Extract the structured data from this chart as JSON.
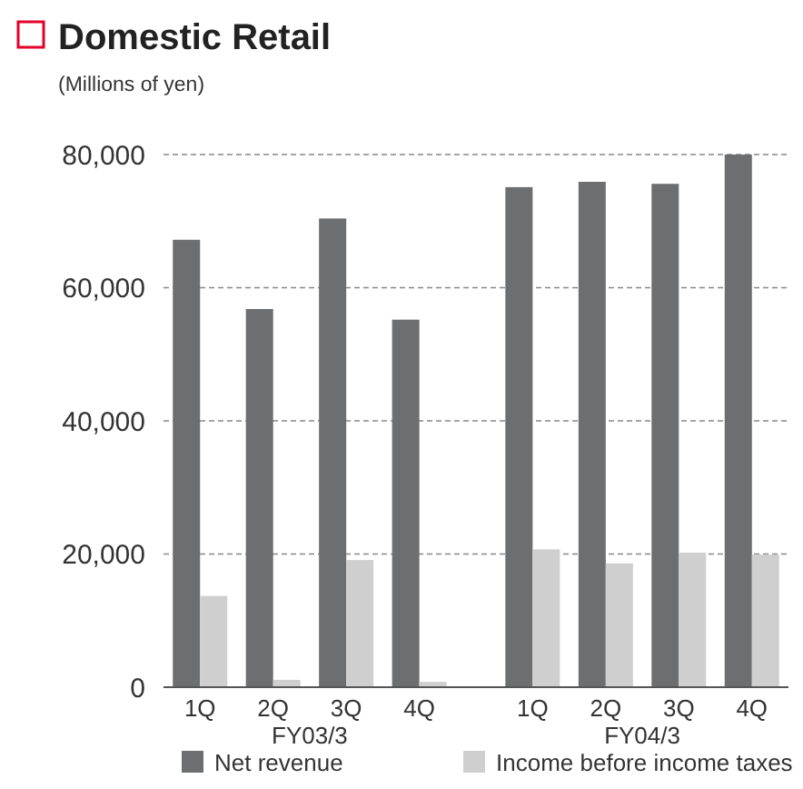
{
  "chart_data": {
    "type": "bar",
    "title": "Domestic Retail",
    "subtitle": "(Millions of yen)",
    "categories": [
      "1Q",
      "2Q",
      "3Q",
      "4Q",
      "1Q",
      "2Q",
      "3Q",
      "4Q"
    ],
    "annotations": [
      "FY03/3",
      "FY04/3"
    ],
    "series": [
      {
        "name": "Net revenue",
        "color": "#6d6e70",
        "values": [
          67200,
          56800,
          70400,
          55200,
          75100,
          75900,
          75600,
          80000
        ]
      },
      {
        "name": "Income before income taxes",
        "color": "#cfcfcf",
        "values": [
          13700,
          1100,
          19100,
          800,
          20700,
          18600,
          20200,
          19900
        ]
      }
    ],
    "ylim": [
      0,
      80000
    ],
    "yticks": [
      {
        "value": 0,
        "label": "0"
      },
      {
        "value": 20000,
        "label": "20,000"
      },
      {
        "value": 40000,
        "label": "40,000"
      },
      {
        "value": 60000,
        "label": "60,000"
      },
      {
        "value": 80000,
        "label": "80,000"
      }
    ],
    "grid": "y",
    "legend": "bottom"
  }
}
